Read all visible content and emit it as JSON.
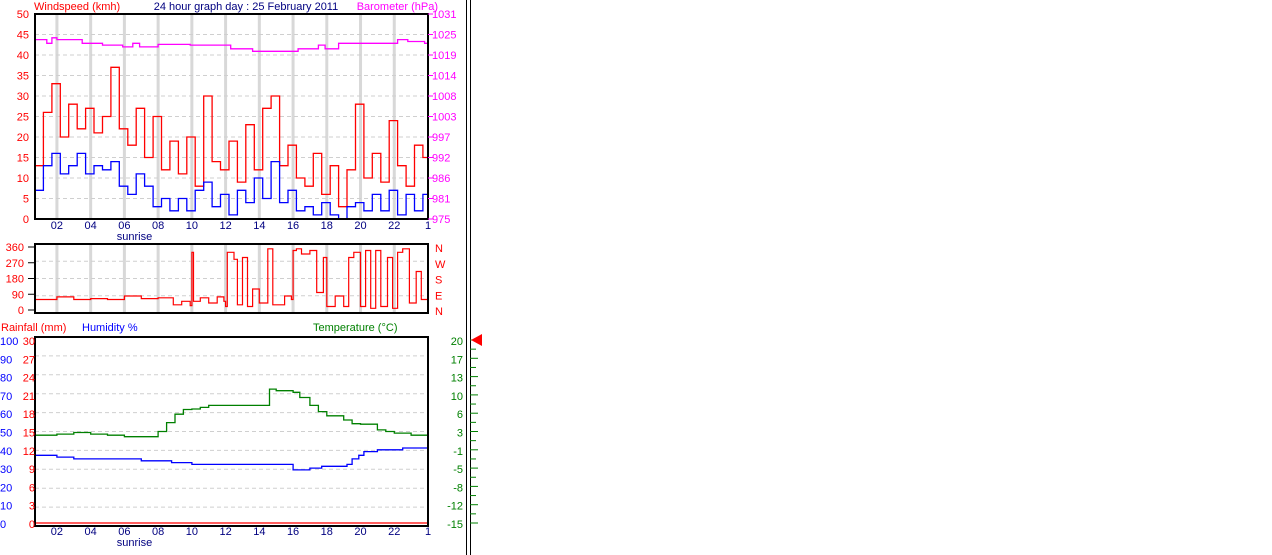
{
  "title": "24 hour graph day : 25 February 2011",
  "sunrise_label": "sunrise",
  "colors": {
    "gust": "#ff0000",
    "average": "#0000ff",
    "barometer": "#ff00ff",
    "direction": "#ff0000",
    "temperature": "#008000",
    "humidity": "#0000ff",
    "rainfall": "#ff0000",
    "title": "#000080"
  },
  "chart_data": [
    {
      "type": "line",
      "name": "wind-barometer",
      "left_label": "Windspeed (kmh)",
      "right_label": "Barometer (hPa)",
      "xlim": [
        0.7,
        24
      ],
      "x_ticks": [
        "02",
        "04",
        "06",
        "08",
        "10",
        "12",
        "14",
        "16",
        "18",
        "20",
        "22",
        "1"
      ],
      "ylim": [
        0,
        50
      ],
      "y_ticks": [
        "0",
        "5",
        "10",
        "15",
        "20",
        "25",
        "30",
        "35",
        "40",
        "45",
        "50"
      ],
      "y2lim": [
        975,
        1031
      ],
      "y2_ticks": [
        "975",
        "981",
        "986",
        "992",
        "997",
        "1003",
        "1008",
        "1014",
        "1019",
        "1025",
        "1031"
      ],
      "grid": true,
      "gust": {
        "x": [
          0.7,
          1.2,
          1.7,
          2.2,
          2.7,
          3.2,
          3.7,
          4.2,
          4.7,
          5.2,
          5.7,
          6.2,
          6.7,
          7.2,
          7.7,
          8.2,
          8.7,
          9.2,
          9.7,
          10.2,
          10.7,
          11.2,
          11.7,
          12.2,
          12.7,
          13.2,
          13.7,
          14.2,
          14.7,
          15.2,
          15.7,
          16.2,
          16.7,
          17.2,
          17.7,
          18.2,
          18.7,
          19.2,
          19.7,
          20.2,
          20.7,
          21.2,
          21.7,
          22.2,
          22.7,
          23.2,
          23.7
        ],
        "y": [
          13,
          26,
          33,
          20,
          28,
          22,
          27,
          21,
          25,
          37,
          22,
          18,
          27,
          15,
          25,
          12,
          19,
          11,
          20,
          8,
          30,
          14,
          12,
          19,
          9,
          23,
          12,
          27,
          30,
          13,
          18,
          10,
          8,
          16,
          6,
          13,
          3,
          12,
          28,
          10,
          16,
          9,
          24,
          13,
          8,
          18,
          15
        ]
      },
      "average": {
        "x": [
          0.7,
          1.2,
          1.7,
          2.2,
          2.7,
          3.2,
          3.7,
          4.2,
          4.7,
          5.2,
          5.7,
          6.2,
          6.7,
          7.2,
          7.7,
          8.2,
          8.7,
          9.2,
          9.7,
          10.2,
          10.7,
          11.2,
          11.7,
          12.2,
          12.7,
          13.2,
          13.7,
          14.2,
          14.7,
          15.2,
          15.7,
          16.2,
          16.7,
          17.2,
          17.7,
          18.2,
          18.7,
          19.2,
          19.7,
          20.2,
          20.7,
          21.2,
          21.7,
          22.2,
          22.7,
          23.2,
          23.7
        ],
        "y": [
          7,
          13,
          16,
          11,
          13,
          16,
          11,
          13,
          12,
          14,
          8,
          6,
          11,
          8,
          3,
          5,
          2,
          5,
          2,
          7,
          9,
          3,
          6,
          1,
          7,
          4,
          10,
          5,
          14,
          4,
          7,
          2,
          3,
          1,
          4,
          1,
          0,
          3,
          4,
          2,
          6,
          2,
          7,
          1,
          6,
          2,
          6
        ]
      },
      "barometer": {
        "x": [
          0.7,
          1.4,
          1.7,
          2.0,
          3.5,
          4.7,
          5.9,
          6.5,
          6.9,
          8.0,
          9.3,
          9.9,
          12.3,
          13.6,
          16.3,
          17.5,
          17.9,
          18.7,
          22.2,
          22.8,
          23.8
        ],
        "y": [
          1024,
          1023,
          1024.5,
          1024,
          1023,
          1022.5,
          1022,
          1023,
          1022,
          1022.7,
          1022.7,
          1022.5,
          1021.5,
          1020.8,
          1021.5,
          1022.5,
          1021.5,
          1023,
          1024,
          1023.5,
          1023
        ]
      }
    },
    {
      "type": "line",
      "name": "wind-direction",
      "xlim": [
        0.7,
        24
      ],
      "ylim": [
        0,
        360
      ],
      "y_ticks": [
        "0",
        "90",
        "180",
        "270",
        "360"
      ],
      "compass_labels": [
        "N",
        "W",
        "S",
        "E",
        "N"
      ],
      "direction": {
        "x": [
          0.7,
          1.5,
          2.0,
          3.0,
          4.0,
          5.0,
          6.0,
          7.0,
          8.0,
          8.9,
          9.4,
          9.9,
          10.0,
          10.1,
          10.5,
          11.0,
          11.5,
          11.9,
          12.0,
          12.1,
          12.5,
          12.7,
          13.0,
          13.3,
          13.6,
          14.0,
          14.3,
          14.5,
          14.8,
          15.5,
          15.9,
          16.0,
          16.2,
          16.5,
          17.0,
          17.4,
          17.8,
          18.0,
          18.5,
          19.0,
          19.3,
          19.6,
          20.0,
          20.3,
          20.6,
          20.9,
          21.2,
          21.6,
          21.9,
          22.2,
          22.5,
          22.9,
          23.3,
          23.6,
          24.0
        ],
        "y": [
          60,
          60,
          75,
          60,
          65,
          60,
          80,
          65,
          70,
          30,
          50,
          25,
          330,
          50,
          70,
          40,
          75,
          50,
          20,
          330,
          290,
          30,
          300,
          20,
          120,
          40,
          40,
          350,
          30,
          80,
          60,
          340,
          350,
          320,
          340,
          100,
          300,
          20,
          80,
          20,
          300,
          330,
          20,
          340,
          10,
          340,
          20,
          300,
          10,
          330,
          350,
          40,
          220,
          60,
          20
        ]
      }
    },
    {
      "type": "line",
      "name": "temperature-humidity-rainfall",
      "rainfall_label": "Rainfall (mm)",
      "humidity_label": "Humidity %",
      "temperature_label": "Temperature (°C)",
      "xlim": [
        0.7,
        24
      ],
      "x_ticks": [
        "02",
        "04",
        "06",
        "08",
        "10",
        "12",
        "14",
        "16",
        "18",
        "20",
        "22",
        "1"
      ],
      "humidity_lim": [
        0,
        100
      ],
      "humidity_ticks": [
        "0",
        "10",
        "20",
        "30",
        "40",
        "50",
        "60",
        "70",
        "80",
        "90",
        "100"
      ],
      "rainfall_lim": [
        0,
        30
      ],
      "rainfall_ticks": [
        "0",
        "3",
        "6",
        "9",
        "12",
        "15",
        "18",
        "21",
        "24",
        "27",
        "30"
      ],
      "temperature_lim": [
        -15,
        20
      ],
      "temperature_ticks": [
        "-15",
        "-12",
        "-8",
        "-5",
        "-1",
        "3",
        "6",
        "10",
        "13",
        "17",
        "20"
      ],
      "temperature_marker": 20,
      "temperature": {
        "x": [
          0.7,
          2.0,
          3.0,
          4.0,
          5.0,
          6.0,
          7.0,
          7.5,
          8.0,
          8.5,
          9.0,
          9.5,
          10.0,
          10.5,
          11.0,
          12.0,
          13.0,
          14.5,
          14.6,
          15.0,
          16.0,
          16.4,
          17.0,
          17.5,
          18.0,
          19.0,
          19.5,
          20.0,
          21.0,
          21.5,
          22.0,
          23.0,
          24.0
        ],
        "y": [
          1.8,
          2.0,
          2.3,
          2.0,
          1.8,
          1.5,
          1.5,
          1.5,
          2.5,
          4.2,
          5.8,
          6.7,
          6.8,
          7.1,
          7.5,
          7.5,
          7.5,
          7.5,
          10.6,
          10.3,
          10.0,
          9.0,
          7.5,
          6.3,
          5.5,
          4.7,
          4.0,
          3.9,
          2.8,
          2.5,
          2.2,
          1.8,
          1.7
        ]
      },
      "humidity": {
        "x": [
          0.7,
          2.0,
          3.0,
          5.0,
          7.0,
          8.8,
          10.0,
          14.6,
          16.0,
          17.0,
          17.7,
          19.2,
          19.5,
          19.9,
          20.2,
          21.0,
          22.5,
          24.0
        ],
        "y": [
          37,
          36,
          35,
          35,
          34,
          33,
          32,
          32,
          29,
          30,
          31,
          32,
          35,
          37,
          39,
          40,
          41,
          41
        ]
      },
      "rainfall": {
        "x": [
          0.7,
          24.0
        ],
        "y": [
          0,
          0
        ]
      }
    }
  ]
}
